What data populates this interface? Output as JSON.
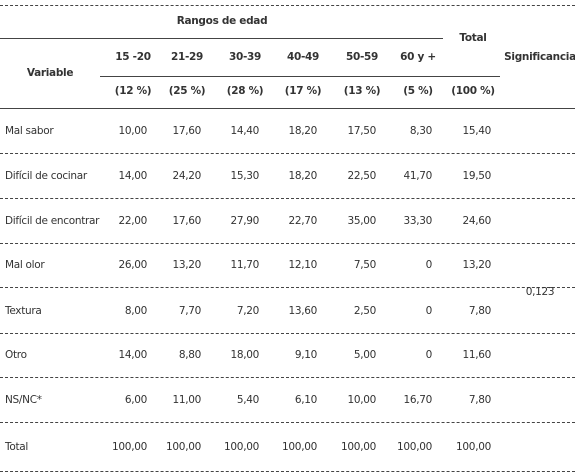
{
  "header": {
    "group_title": "Rangos de edad",
    "total_label": "Total",
    "variable_label": "Variable",
    "significance_label": "Significancia",
    "age_groups": [
      {
        "label": "15 -20",
        "share": "(12 %)"
      },
      {
        "label": "21-29",
        "share": "(25 %)"
      },
      {
        "label": "30-39",
        "share": "(28 %)"
      },
      {
        "label": "40-49",
        "share": "(17 %)"
      },
      {
        "label": "50-59",
        "share": "(13 %)"
      },
      {
        "label": "60 y +",
        "share": "(5 %)"
      }
    ],
    "total_share": "(100 %)"
  },
  "rows": [
    {
      "label": "Mal sabor",
      "values": [
        "10,00",
        "17,60",
        "14,40",
        "18,20",
        "17,50",
        "8,30"
      ],
      "total": "15,40"
    },
    {
      "label": "Difícil de cocinar",
      "values": [
        "14,00",
        "24,20",
        "15,30",
        "18,20",
        "22,50",
        "41,70"
      ],
      "total": "19,50"
    },
    {
      "label": "Difícil de encontrar",
      "values": [
        "22,00",
        "17,60",
        "27,90",
        "22,70",
        "35,00",
        "33,30"
      ],
      "total": "24,60"
    },
    {
      "label": "Mal olor",
      "values": [
        "26,00",
        "13,20",
        "11,70",
        "12,10",
        "7,50",
        "0"
      ],
      "total": "13,20"
    },
    {
      "label": "Textura",
      "values": [
        "8,00",
        "7,70",
        "7,20",
        "13,60",
        "2,50",
        "0"
      ],
      "total": "7,80"
    },
    {
      "label": "Otro",
      "values": [
        "14,00",
        "8,80",
        "18,00",
        "9,10",
        "5,00",
        "0"
      ],
      "total": "11,60"
    },
    {
      "label": "NS/NC*",
      "values": [
        "6,00",
        "11,00",
        "5,40",
        "6,10",
        "10,00",
        "16,70"
      ],
      "total": "7,80"
    },
    {
      "label": "Total",
      "values": [
        "100,00",
        "100,00",
        "100,00",
        "100,00",
        "100,00",
        "100,00"
      ],
      "total": "100,00"
    }
  ],
  "significance": "0,123"
}
